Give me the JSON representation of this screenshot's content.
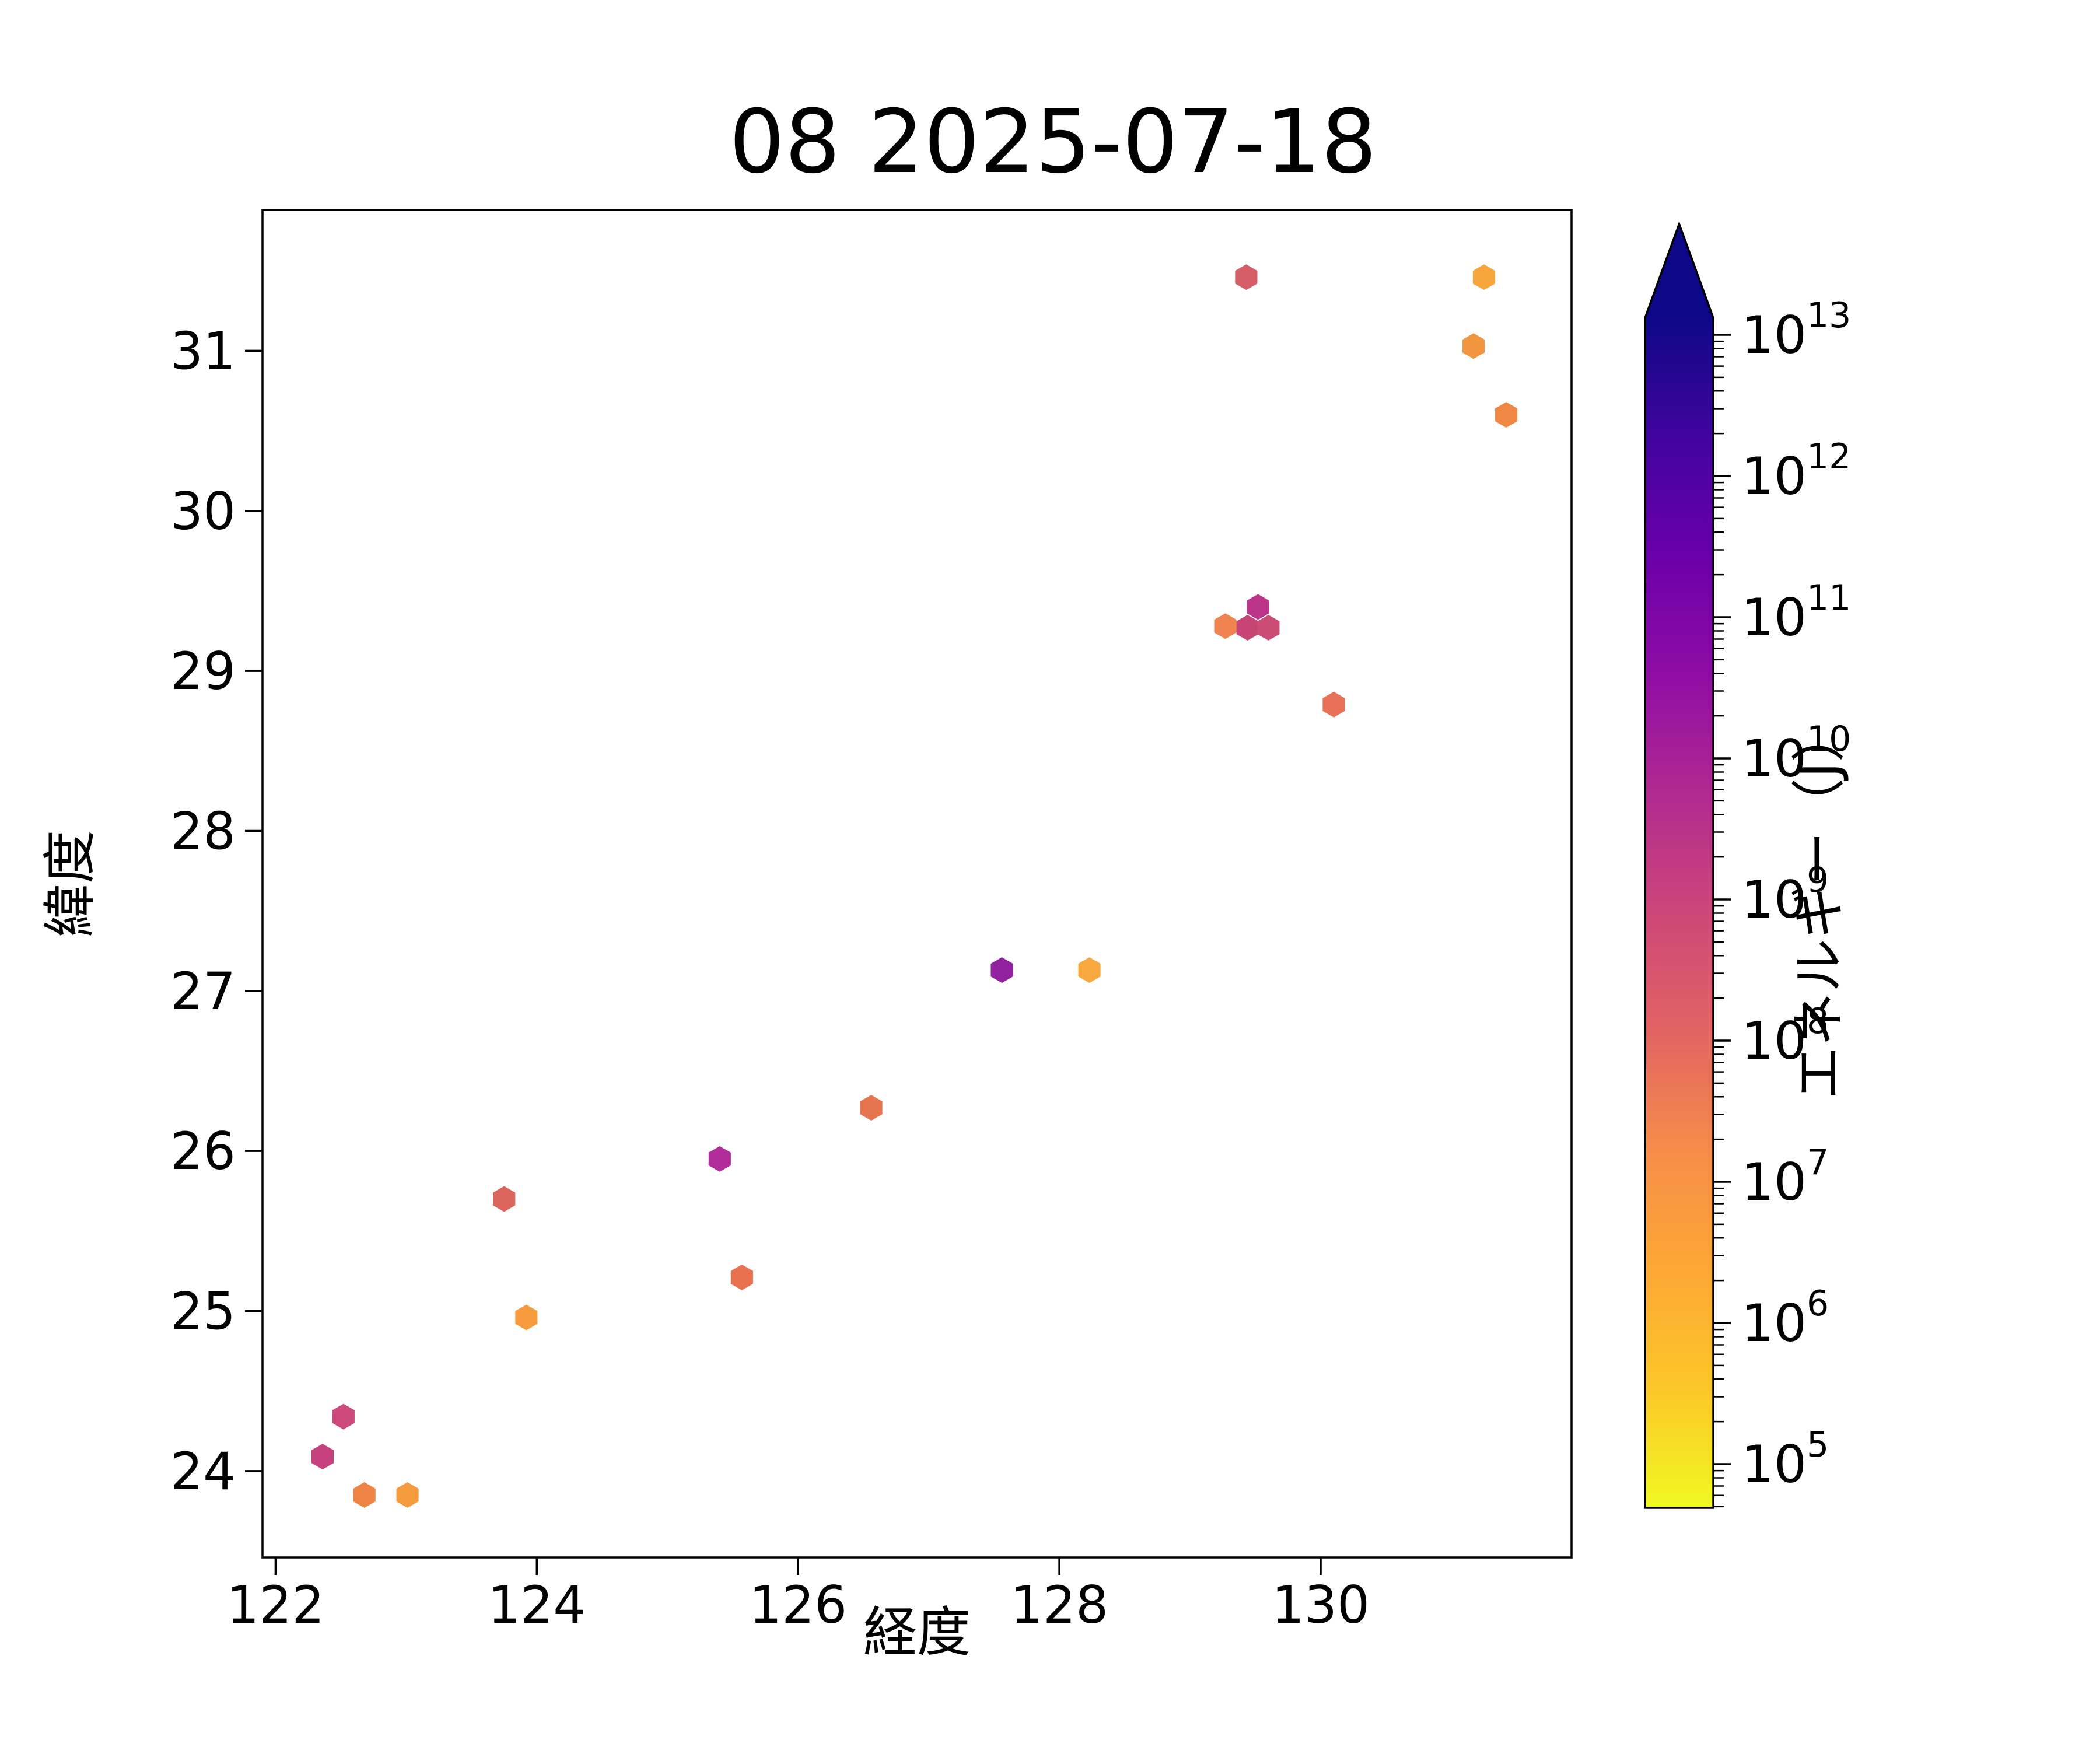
{
  "chart_data": {
    "type": "scatter",
    "subtype": "hexbin-markers",
    "title": "08 2025-07-18",
    "xlabel": "経度",
    "ylabel": "緯度",
    "xlim": [
      121.9,
      131.92
    ],
    "ylim": [
      23.46,
      31.88
    ],
    "xticks": [
      122,
      124,
      126,
      128,
      130
    ],
    "yticks": [
      24,
      25,
      26,
      27,
      28,
      29,
      30,
      31
    ],
    "grid": false,
    "background": "#ffffff",
    "marker": "hexagon",
    "points": [
      {
        "lon": 122.36,
        "lat": 24.09,
        "energy_j": 1400000000.0,
        "color": "#c6427f"
      },
      {
        "lon": 122.52,
        "lat": 24.34,
        "energy_j": 1200000000.0,
        "color": "#cc4a7c"
      },
      {
        "lon": 122.68,
        "lat": 23.85,
        "energy_j": 9000000.0,
        "color": "#ed8345"
      },
      {
        "lon": 123.01,
        "lat": 23.85,
        "energy_j": 3500000.0,
        "color": "#f49b3d"
      },
      {
        "lon": 123.75,
        "lat": 25.7,
        "energy_j": 150000000.0,
        "color": "#d9655b"
      },
      {
        "lon": 123.92,
        "lat": 24.96,
        "energy_j": 3200000.0,
        "color": "#f69c3f"
      },
      {
        "lon": 125.4,
        "lat": 25.95,
        "energy_j": 7500000000.0,
        "color": "#b12d9a"
      },
      {
        "lon": 125.57,
        "lat": 25.21,
        "energy_j": 30000000.0,
        "color": "#e8724f"
      },
      {
        "lon": 126.56,
        "lat": 26.27,
        "energy_j": 32000000.0,
        "color": "#e5754f"
      },
      {
        "lon": 127.56,
        "lat": 27.13,
        "energy_j": 29000000000.0,
        "color": "#92219f"
      },
      {
        "lon": 128.23,
        "lat": 27.13,
        "energy_j": 2300000.0,
        "color": "#f7a83e"
      },
      {
        "lon": 129.27,
        "lat": 29.28,
        "energy_j": 13000000.0,
        "color": "#f0834f"
      },
      {
        "lon": 129.44,
        "lat": 29.27,
        "energy_j": 1000000000.0,
        "color": "#c64573"
      },
      {
        "lon": 129.52,
        "lat": 29.4,
        "energy_j": 3500000000.0,
        "color": "#bc3487"
      },
      {
        "lon": 129.6,
        "lat": 29.27,
        "energy_j": 800000000.0,
        "color": "#cb4d75"
      },
      {
        "lon": 130.1,
        "lat": 28.79,
        "energy_j": 40000000.0,
        "color": "#e77257"
      },
      {
        "lon": 129.43,
        "lat": 31.46,
        "energy_j": 200000000.0,
        "color": "#d65e68"
      },
      {
        "lon": 131.25,
        "lat": 31.46,
        "energy_j": 2300000.0,
        "color": "#f6a63c"
      },
      {
        "lon": 131.17,
        "lat": 31.03,
        "energy_j": 4700000.0,
        "color": "#f2953f"
      },
      {
        "lon": 131.42,
        "lat": 30.6,
        "energy_j": 10000000.0,
        "color": "#ef8845"
      }
    ],
    "colorbar": {
      "label": "エネルギー（J）",
      "scale": "log",
      "unit": "J",
      "tick_exponents": [
        5,
        6,
        7,
        8,
        9,
        10,
        11,
        12,
        13
      ],
      "tick_mantissa": "10",
      "range_exponents": [
        4.7,
        13.1
      ],
      "extend": "max",
      "colormap": "plasma_r",
      "extend_color": "#0d0887",
      "gradient_stops_bottom_to_top": [
        "#f0f921",
        "#fcc728",
        "#fda835",
        "#f68d4a",
        "#e16462",
        "#cc4778",
        "#b12a90",
        "#8f0da4",
        "#6a00a8",
        "#41049d",
        "#0d0887"
      ]
    },
    "legend": null
  }
}
